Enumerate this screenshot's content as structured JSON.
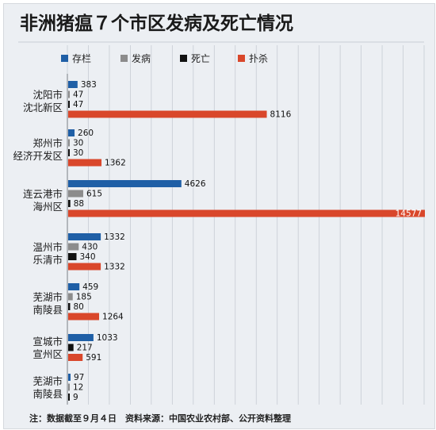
{
  "chart_data": {
    "type": "bar",
    "title": "非洲猪瘟７个市区发病及死亡情况",
    "orientation": "horizontal",
    "categories": [
      [
        "沈阳市",
        "沈北新区"
      ],
      [
        "郑州市",
        "经济开发区"
      ],
      [
        "连云港市",
        "海州区"
      ],
      [
        "温州市",
        "乐清市"
      ],
      [
        "芜湖市",
        "南陵县"
      ],
      [
        "宣城市",
        "宣州区"
      ],
      [
        "芜湖市",
        "南陵县"
      ]
    ],
    "series": [
      {
        "name": "存栏",
        "color": "#1f5fa6",
        "values": [
          383,
          260,
          4626,
          1332,
          459,
          1033,
          97
        ]
      },
      {
        "name": "发病",
        "color": "#8c8c8c",
        "values": [
          47,
          30,
          615,
          430,
          185,
          null,
          12
        ]
      },
      {
        "name": "死亡",
        "color": "#111111",
        "values": [
          47,
          30,
          88,
          340,
          80,
          217,
          9
        ]
      },
      {
        "name": "扑杀",
        "color": "#d9472b",
        "values": [
          8116,
          1362,
          14577,
          1332,
          1264,
          591,
          null
        ]
      }
    ],
    "xlim": [
      0,
      14577
    ],
    "grid": true,
    "legend": "top",
    "footnote": "注：数据截至９月４日　资料来源：中国农业农村部、公开资料整理"
  }
}
